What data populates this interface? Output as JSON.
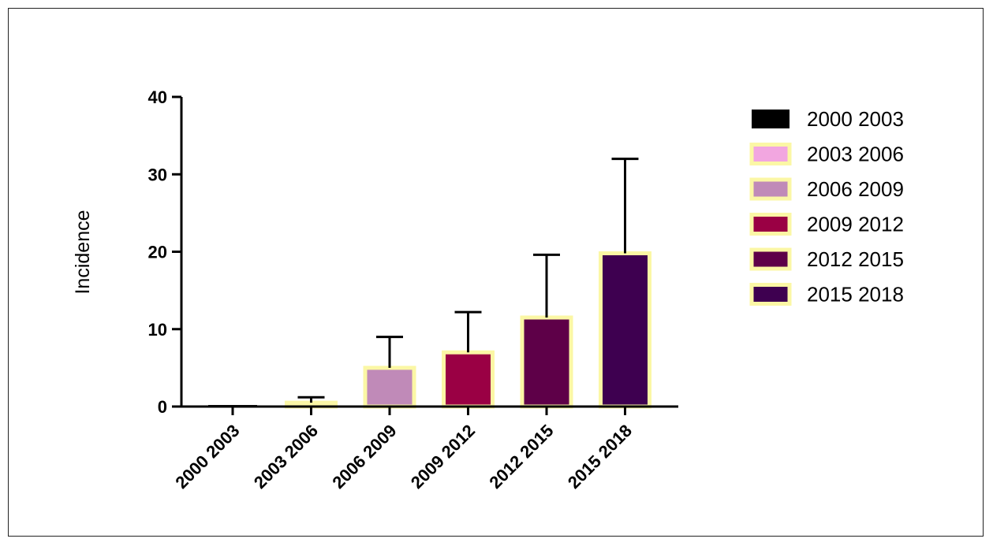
{
  "chart_data": {
    "type": "bar",
    "ylabel": "Incidence",
    "ylim": [
      0,
      40
    ],
    "yticks": [
      0,
      10,
      20,
      30,
      40
    ],
    "categories": [
      "2000 2003",
      "2003 2006",
      "2006 2009",
      "2009 2012",
      "2012 2015",
      "2015 2018"
    ],
    "values": [
      0.2,
      0.5,
      5.0,
      7.0,
      11.5,
      19.8
    ],
    "error_upper": [
      0.2,
      1.2,
      9.0,
      12.2,
      19.6,
      32.0
    ],
    "colors": [
      "#000000",
      "#f2a6e0",
      "#c08ab8",
      "#9a0044",
      "#5e0048",
      "#3e0050"
    ],
    "outline_color": "#fbf7a5",
    "legend": {
      "position": "right",
      "entries": [
        "2000 2003",
        "2003 2006",
        "2006 2009",
        "2009 2012",
        "2012 2015",
        "2015 2018"
      ]
    }
  }
}
